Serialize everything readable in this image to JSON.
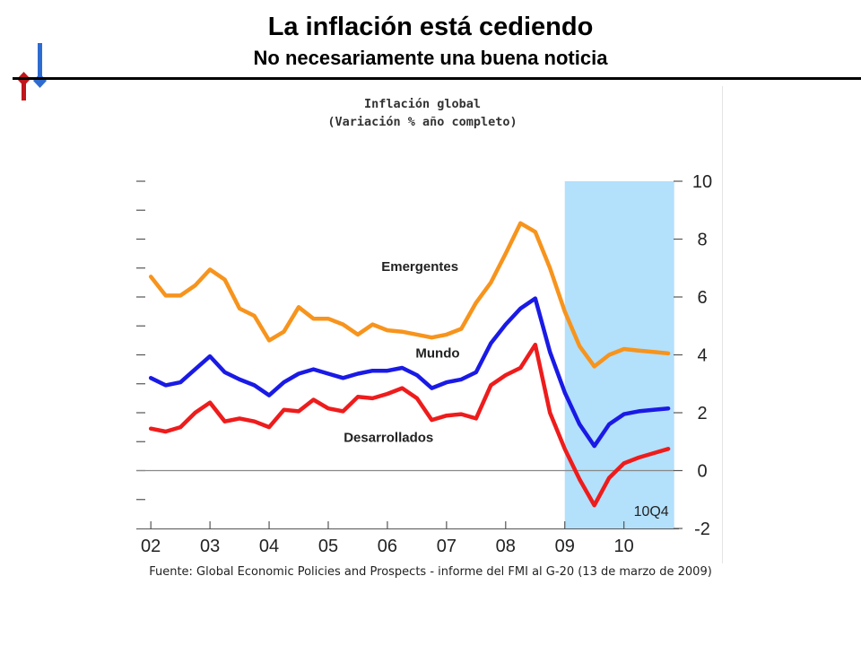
{
  "slide": {
    "title": "La inflación está cediendo",
    "subtitle": "No necesariamente una buena noticia",
    "source": "Fuente: Global Economic Policies and Prospects - informe del FMI al G-20 (13 de marzo de 2009)"
  },
  "colors": {
    "emergentes": "#f7941d",
    "mundo": "#1a1ae6",
    "desarrollados": "#ee1c1c",
    "forecast_band": "#b3e0fb",
    "logo_red": "#c0161c",
    "logo_blue": "#2e6bd1"
  },
  "chart_data": {
    "type": "line",
    "title_line1": "Inflación global",
    "title_line2": "(Variación % año completo)",
    "xlabel": "",
    "ylabel": "",
    "x_tick_labels": [
      "02",
      "03",
      "04",
      "05",
      "06",
      "07",
      "08",
      "09",
      "10"
    ],
    "x_tick_values": [
      2002,
      2003,
      2004,
      2005,
      2006,
      2007,
      2008,
      2009,
      2010
    ],
    "xlim": [
      2001.8,
      2010.9
    ],
    "y_tick_labels": [
      "10",
      "8",
      "6",
      "4",
      "2",
      "0",
      "-2"
    ],
    "y_tick_values": [
      10,
      8,
      6,
      4,
      2,
      0,
      -2
    ],
    "ylim": [
      -2,
      10
    ],
    "forecast_shading": {
      "x_start": 2009.0,
      "x_end": 2010.85,
      "label": "10Q4"
    },
    "x": [
      2002.0,
      2002.25,
      2002.5,
      2002.75,
      2003.0,
      2003.25,
      2003.5,
      2003.75,
      2004.0,
      2004.25,
      2004.5,
      2004.75,
      2005.0,
      2005.25,
      2005.5,
      2005.75,
      2006.0,
      2006.25,
      2006.5,
      2006.75,
      2007.0,
      2007.25,
      2007.5,
      2007.75,
      2008.0,
      2008.25,
      2008.5,
      2008.75,
      2009.0,
      2009.25,
      2009.5,
      2009.75,
      2010.0,
      2010.25,
      2010.5,
      2010.75
    ],
    "series": [
      {
        "name": "Emergentes",
        "values": [
          6.7,
          6.05,
          6.05,
          6.4,
          6.95,
          6.6,
          5.6,
          5.35,
          4.5,
          4.8,
          5.65,
          5.25,
          5.25,
          5.05,
          4.7,
          5.05,
          4.85,
          4.8,
          4.7,
          4.6,
          4.7,
          4.9,
          5.8,
          6.5,
          7.5,
          8.55,
          8.25,
          7.0,
          5.5,
          4.3,
          3.6,
          4.0,
          4.2,
          4.15,
          4.1,
          4.05
        ]
      },
      {
        "name": "Mundo",
        "values": [
          3.2,
          2.95,
          3.05,
          3.5,
          3.95,
          3.4,
          3.15,
          2.95,
          2.6,
          3.05,
          3.35,
          3.5,
          3.35,
          3.2,
          3.35,
          3.45,
          3.45,
          3.55,
          3.3,
          2.85,
          3.05,
          3.15,
          3.4,
          4.4,
          5.05,
          5.6,
          5.95,
          4.1,
          2.7,
          1.6,
          0.85,
          1.6,
          1.95,
          2.05,
          2.1,
          2.15
        ]
      },
      {
        "name": "Desarrollados",
        "values": [
          1.45,
          1.35,
          1.5,
          2.0,
          2.35,
          1.7,
          1.8,
          1.7,
          1.5,
          2.1,
          2.05,
          2.45,
          2.15,
          2.05,
          2.55,
          2.5,
          2.65,
          2.85,
          2.5,
          1.75,
          1.9,
          1.95,
          1.8,
          2.95,
          3.3,
          3.55,
          4.35,
          2.0,
          0.75,
          -0.3,
          -1.2,
          -0.25,
          0.25,
          0.45,
          0.6,
          0.75
        ]
      }
    ],
    "series_labels": [
      "Emergentes",
      "Mundo",
      "Desarrollados"
    ],
    "grid": false,
    "legend": "inline labels"
  }
}
